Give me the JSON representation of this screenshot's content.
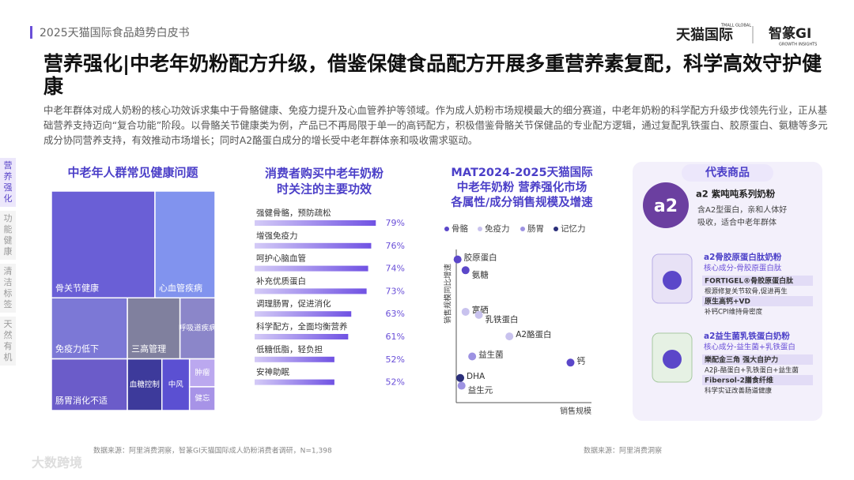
{
  "header": {
    "report": "2025天猫国际食品趋势白皮书",
    "logo1": "天猫国际",
    "logo1_small": "TMALL GLOBAL",
    "logo2": "智篆GI",
    "logo2_small": "GROWTH INSIGHTS"
  },
  "title": "营养强化|中老年奶粉配方升级，借鉴保健食品配方开展多重营养素复配，科学高效守护健康",
  "body": "中老年群体对成人奶粉的核心功效诉求集中于骨骼健康、免疫力提升及心血管养护等领域。作为成人奶粉市场规模最大的细分赛道，中老年奶粉的科学配方升级步伐领先行业，正从基础营养支持迈向“复合功能”阶段。以骨骼关节健康类为例，产品已不再局限于单一的高钙配方，积极借鉴骨骼关节保健品的专业配方逻辑，通过复配乳铁蛋白、胶原蛋白、氨糖等多元成分协同营养支持，有效推动市场增长；同时A2酪蛋白成分的增长受中老年群体亲和吸收需求驱动。",
  "side_tabs": [
    "营养强化",
    "功能健康",
    "清洁标签",
    "天然有机"
  ],
  "chart_data": [
    {
      "type": "treemap",
      "title": "中老年人群常见健康问题",
      "categories": [
        "骨关节健康",
        "心血管疾病",
        "免疫力低下",
        "肠胃消化不适",
        "三高管理",
        "呼吸道疾病",
        "血糖控制",
        "中风",
        "肿瘤",
        "健忘"
      ],
      "values": [
        31,
        18,
        13,
        11,
        9,
        6,
        5,
        4,
        2,
        1.7
      ],
      "colors": [
        "#6a5fd6",
        "#8193ee",
        "#7c78d6",
        "#6b5cc9",
        "#80809e",
        "#8b86c9",
        "#3d3a9b",
        "#5b50d2",
        "#bba8ef",
        "#a793e7"
      ]
    },
    {
      "type": "bar",
      "title": [
        "消费者购买中老年奶粉",
        "时关注的主要功效"
      ],
      "categories": [
        "强健骨骼，预防疏松",
        "增强免疫力",
        "呵护心脑血管",
        "补充优质蛋白",
        "调理肠胃，促进消化",
        "科学配方，全面均衡营养",
        "低糖低脂，轻负担",
        "安神助眠"
      ],
      "values": [
        79,
        76,
        74,
        73,
        63,
        61,
        52,
        52
      ],
      "value_labels": [
        "79%",
        "76%",
        "74%",
        "73%",
        "63%",
        "61%",
        "52%",
        "52%"
      ],
      "xlim": [
        0,
        100
      ],
      "color": "#7052e3"
    },
    {
      "type": "scatter",
      "title": [
        "MAT2024-2025天猫国际",
        "中老年奶粉 营养强化市场",
        "各属性/成分销售规模及增速"
      ],
      "x_label": "销售规模",
      "y_label": "销售规模同比增速",
      "xlim": [
        0,
        100
      ],
      "ylim": [
        0,
        100
      ],
      "series": [
        {
          "name": "骨骼",
          "color": "#5b47c9",
          "labels": [
            "胶原蛋白",
            "氨糖",
            "钙"
          ],
          "x": [
            1,
            7,
            86
          ],
          "y": [
            93,
            86,
            26
          ]
        },
        {
          "name": "免疫力",
          "color": "#c8c2ee",
          "labels": [
            "富硒",
            "乳铁蛋白",
            "A2酪蛋白"
          ],
          "x": [
            7,
            17,
            40
          ],
          "y": [
            59,
            57,
            43
          ]
        },
        {
          "name": "肠胃",
          "color": "#9d92e2",
          "labels": [
            "益生菌",
            "益生元"
          ],
          "x": [
            12,
            4
          ],
          "y": [
            30,
            11
          ]
        },
        {
          "name": "记忆力",
          "color": "#2b2f7a",
          "labels": [
            "DHA"
          ],
          "x": [
            3
          ],
          "y": [
            16
          ]
        }
      ]
    }
  ],
  "products": {
    "title": "代表商品",
    "items": [
      {
        "name": "a2 紫吨吨系列奶粉",
        "desc": "含A2型蛋白，亲和人体好吸收，适合中老年群体"
      },
      {
        "name": "a2骨胶原蛋白肽奶粉",
        "core": "核心成分-骨胶原蛋白肽",
        "points": [
          "FORTIGEL®骨胶原蛋白肽",
          "根源修复关节软骨,促进再生",
          "原生高钙+VD",
          "补钙CPI维持骨密度"
        ]
      },
      {
        "name": "a2益生菌乳铁蛋白奶粉",
        "core": "核心成分-益生菌+乳铁蛋白",
        "points": [
          "樂配金三角 强大自护力",
          "A2β-酪蛋白+乳铁蛋白+益生菌",
          "Fibersol-2膳食纤维",
          "科学实证改善肠道健康"
        ]
      }
    ]
  },
  "sources": [
    "数据来源：阿里消费洞察，智篆GI天猫国际成人奶粉消费者调研，N=1,398",
    "数据来源：阿里消费洞察"
  ],
  "watermark": "大数跨境"
}
